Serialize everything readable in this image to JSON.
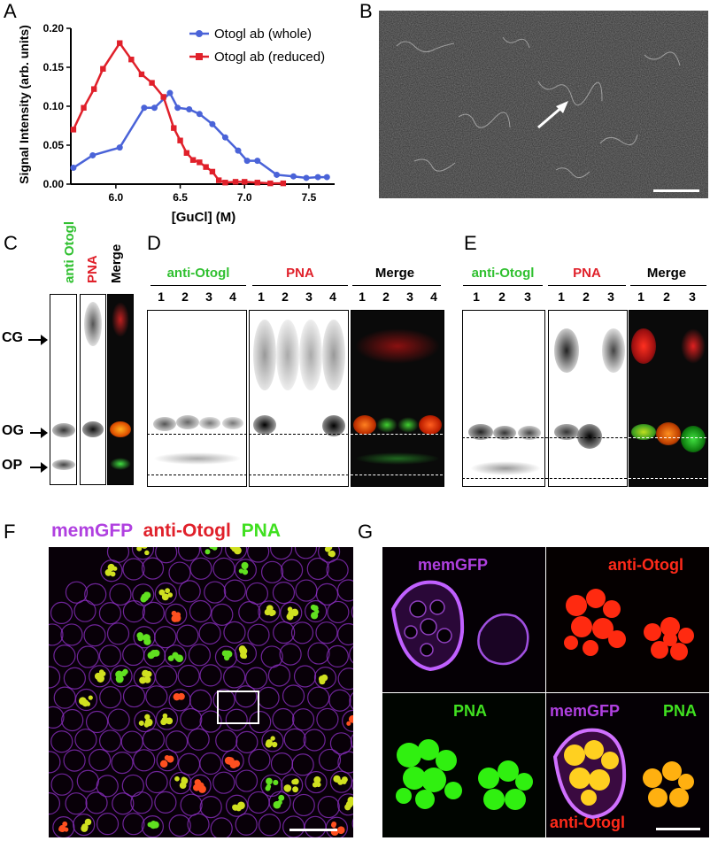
{
  "panels": {
    "A": "A",
    "B": "B",
    "C": "C",
    "D": "D",
    "E": "E",
    "F": "F",
    "G": "G"
  },
  "chart_data": {
    "type": "line",
    "xlabel": "[GuCl] (M)",
    "ylabel": "Signal Intensity (arb. units)",
    "xlim": [
      5.65,
      7.7
    ],
    "ylim": [
      0,
      0.2
    ],
    "xticks": [
      "6.0",
      "6.5",
      "7.0",
      "7.5"
    ],
    "yticks": [
      "0.00",
      "0.05",
      "0.10",
      "0.15",
      "0.20"
    ],
    "legend_position": "top-right",
    "series": [
      {
        "name": "Otogl ab (whole)",
        "color": "#4a63d8",
        "marker": "circle",
        "points": [
          [
            5.67,
            0.021
          ],
          [
            5.82,
            0.037
          ],
          [
            6.03,
            0.047
          ],
          [
            6.22,
            0.098
          ],
          [
            6.3,
            0.098
          ],
          [
            6.42,
            0.117
          ],
          [
            6.48,
            0.098
          ],
          [
            6.57,
            0.096
          ],
          [
            6.65,
            0.09
          ],
          [
            6.75,
            0.077
          ],
          [
            6.85,
            0.06
          ],
          [
            6.95,
            0.043
          ],
          [
            7.02,
            0.03
          ],
          [
            7.1,
            0.03
          ],
          [
            7.25,
            0.012
          ],
          [
            7.38,
            0.01
          ],
          [
            7.48,
            0.008
          ],
          [
            7.57,
            0.009
          ],
          [
            7.64,
            0.009
          ]
        ]
      },
      {
        "name": "Otogl ab (reduced)",
        "color": "#e0202a",
        "marker": "square",
        "points": [
          [
            5.67,
            0.07
          ],
          [
            5.75,
            0.098
          ],
          [
            5.83,
            0.122
          ],
          [
            5.9,
            0.148
          ],
          [
            6.03,
            0.181
          ],
          [
            6.12,
            0.16
          ],
          [
            6.2,
            0.141
          ],
          [
            6.28,
            0.13
          ],
          [
            6.37,
            0.112
          ],
          [
            6.45,
            0.072
          ],
          [
            6.5,
            0.056
          ],
          [
            6.55,
            0.04
          ],
          [
            6.6,
            0.031
          ],
          [
            6.65,
            0.028
          ],
          [
            6.7,
            0.022
          ],
          [
            6.75,
            0.016
          ],
          [
            6.8,
            0.005
          ],
          [
            6.85,
            0.002
          ],
          [
            6.93,
            0.003
          ],
          [
            7.0,
            0.003
          ],
          [
            7.1,
            0.002
          ],
          [
            7.2,
            0.001
          ],
          [
            7.3,
            0.001
          ]
        ]
      }
    ]
  },
  "panelC": {
    "col1": "anti Otogl",
    "col2": "PNA",
    "col3": "Merge",
    "markers": [
      "CG",
      "OG",
      "OP"
    ]
  },
  "panelD": {
    "head1": "anti-Otogl",
    "head2": "PNA",
    "head3": "Merge",
    "lanes": [
      "1",
      "2",
      "3",
      "4"
    ]
  },
  "panelE": {
    "head1": "anti-Otogl",
    "head2": "PNA",
    "head3": "Merge",
    "lanes": [
      "1",
      "2",
      "3"
    ]
  },
  "panelF": {
    "l1": "memGFP",
    "l2": "anti-Otogl",
    "l3": "PNA",
    "c1": "#b040e0",
    "c2": "#e0202a",
    "c3": "#40e020"
  },
  "panelG": {
    "tl": "memGFP",
    "tr": "anti-Otogl",
    "bl": "PNA",
    "br1": "memGFP",
    "br2": "PNA",
    "br3": "anti-Otogl"
  }
}
